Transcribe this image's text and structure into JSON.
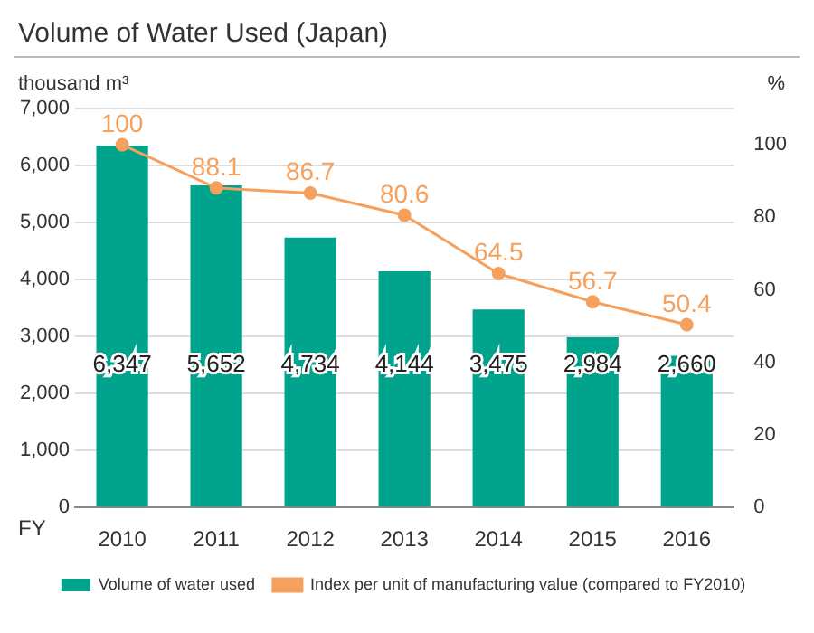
{
  "chart_data": {
    "type": "bar",
    "title": "Volume of Water Used (Japan)",
    "xlabel": "FY",
    "ylabel": "thousand m³",
    "y2label": "%",
    "categories": [
      "2010",
      "2011",
      "2012",
      "2013",
      "2014",
      "2015",
      "2016"
    ],
    "series": [
      {
        "name": "Volume of water used",
        "color": "#00a38b",
        "values": [
          6347,
          5652,
          4734,
          4144,
          3475,
          2984,
          2660
        ],
        "value_labels": [
          "6,347",
          "5,652",
          "4,734",
          "4,144",
          "3,475",
          "2,984",
          "2,660"
        ]
      },
      {
        "name": "Index per unit of manufacturing value (compared to FY2010)",
        "type": "line",
        "axis": "y2",
        "color": "#f5a05c",
        "marker": "circle",
        "values": [
          100,
          88.1,
          86.7,
          80.6,
          64.5,
          56.7,
          50.4
        ],
        "value_labels": [
          "100",
          "88.1",
          "86.7",
          "80.6",
          "64.5",
          "56.7",
          "50.4"
        ]
      }
    ],
    "ylim": [
      0,
      7000
    ],
    "yticks": [
      0,
      {
        "value": 1000,
        "label": "1,000"
      },
      {
        "value": 2000,
        "label": "2,000"
      },
      {
        "value": 3000,
        "label": "3,000"
      },
      {
        "value": 4000,
        "label": "4,000"
      },
      {
        "value": 5000,
        "label": "5,000"
      },
      {
        "value": 6000,
        "label": "6,000"
      },
      {
        "value": 7000,
        "label": "7,000"
      }
    ],
    "y2lim": [
      0,
      110
    ],
    "y2ticks": [
      0,
      20,
      40,
      60,
      80,
      100
    ],
    "grid": "y",
    "legend": "bottom"
  }
}
